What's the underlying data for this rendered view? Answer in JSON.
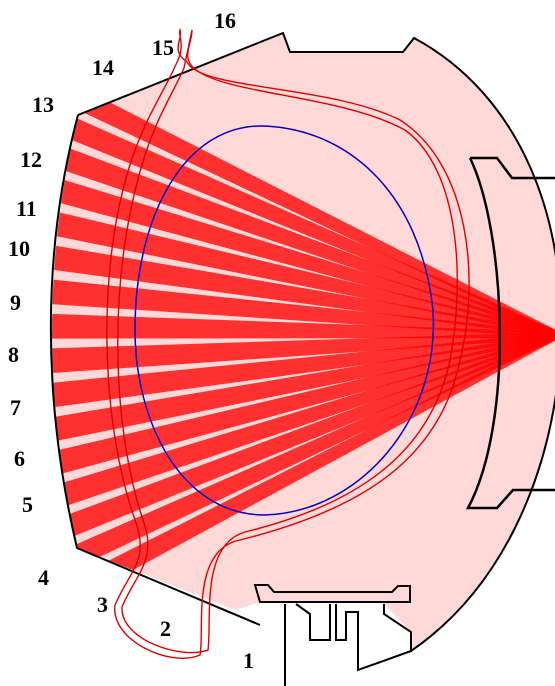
{
  "diagram": {
    "channel_labels": [
      "1",
      "2",
      "3",
      "4",
      "5",
      "6",
      "7",
      "8",
      "9",
      "10",
      "11",
      "12",
      "13",
      "14",
      "15",
      "16"
    ],
    "colors": {
      "background": "#ffffff",
      "vessel_wall": "#000000",
      "beam_fan": "#ff0000",
      "plasma_boundary": "#0000cc",
      "separatrix": "#dd0000",
      "label_text": "#000000"
    }
  }
}
